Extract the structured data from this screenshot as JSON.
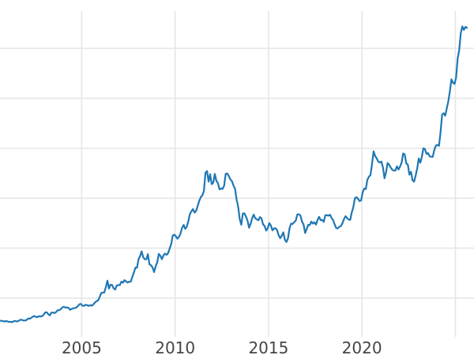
{
  "chart_data": {
    "type": "line",
    "title": "",
    "xlabel": "",
    "ylabel": "",
    "legend": "none",
    "grid": "on",
    "background_color": "#ffffff",
    "grid_color": "#e6e6e6",
    "line_color": "#1f77b4",
    "tick_label_color": "#454545",
    "tick_label_font_px": 20,
    "x_tick_labels": [
      "2005",
      "2010",
      "2015",
      "2020"
    ],
    "x_tick_years": [
      2005,
      2010,
      2015,
      2020
    ],
    "x_gridline_years": [
      2005,
      2010,
      2015,
      2020,
      2025
    ],
    "y_gridline_values": [
      500,
      1000,
      1500,
      2000,
      2500,
      3000
    ],
    "xlim": [
      2000.625,
      2026.0
    ],
    "ylim_visible": [
      -69,
      3484
    ],
    "series": [
      {
        "name": "price-series",
        "interval": "monthly",
        "start_year": 2000,
        "start_month": 8,
        "values": [
          274,
          273,
          270,
          266,
          271,
          266,
          262,
          263,
          260,
          272,
          270,
          267,
          272,
          284,
          283,
          276,
          276,
          281,
          295,
          294,
          302,
          314,
          321,
          313,
          310,
          319,
          317,
          319,
          333,
          357,
          359,
          340,
          328,
          355,
          356,
          351,
          360,
          379,
          379,
          389,
          407,
          414,
          405,
          407,
          403,
          384,
          392,
          398,
          401,
          405,
          420,
          439,
          442,
          424,
          423,
          434,
          429,
          422,
          431,
          424,
          438,
          456,
          470,
          477,
          510,
          550,
          555,
          557,
          611,
          675,
          596,
          634,
          632,
          598,
          586,
          627,
          630,
          631,
          665,
          655,
          680,
          667,
          656,
          665,
          665,
          713,
          755,
          806,
          804,
          890,
          922,
          968,
          910,
          889,
          889,
          940,
          839,
          829,
          807,
          761,
          820,
          858,
          943,
          924,
          890,
          929,
          946,
          934,
          950,
          997,
          1043,
          1127,
          1135,
          1118,
          1095,
          1113,
          1149,
          1205,
          1233,
          1193,
          1216,
          1271,
          1342,
          1370,
          1391,
          1356,
          1373,
          1424,
          1474,
          1511,
          1529,
          1573,
          1756,
          1772,
          1666,
          1739,
          1641,
          1655,
          1743,
          1674,
          1650,
          1589,
          1598,
          1593,
          1627,
          1744,
          1747,
          1722,
          1688,
          1671,
          1628,
          1593,
          1487,
          1414,
          1290,
          1235,
          1347,
          1348,
          1316,
          1276,
          1205,
          1244,
          1301,
          1336,
          1298,
          1289,
          1279,
          1311,
          1297,
          1238,
          1222,
          1176,
          1200,
          1251,
          1227,
          1179,
          1198,
          1199,
          1181,
          1130,
          1100,
          1125,
          1159,
          1086,
          1062,
          1097,
          1200,
          1246,
          1242,
          1260,
          1276,
          1337,
          1340,
          1327,
          1266,
          1238,
          1152,
          1192,
          1234,
          1231,
          1266,
          1246,
          1260,
          1236,
          1283,
          1314,
          1280,
          1282,
          1264,
          1331,
          1330,
          1325,
          1335,
          1303,
          1282,
          1238,
          1201,
          1198,
          1215,
          1221,
          1250,
          1292,
          1320,
          1301,
          1286,
          1284,
          1359,
          1413,
          1500,
          1511,
          1495,
          1471,
          1479,
          1561,
          1597,
          1592,
          1683,
          1716,
          1732,
          1843,
          1969,
          1922,
          1900,
          1866,
          1858,
          1867,
          1808,
          1700,
          1760,
          1853,
          1835,
          1807,
          1784,
          1777,
          1777,
          1820,
          1787,
          1817,
          1856,
          1948,
          1937,
          1848,
          1836,
          1736,
          1765,
          1681,
          1665,
          1726,
          1797,
          1898,
          1856,
          1913,
          2000,
          1992,
          1943,
          1951,
          1918,
          1916,
          1915,
          1984,
          2026,
          2034,
          2025,
          2158,
          2336,
          2351,
          2326,
          2398,
          2470,
          2570,
          2690,
          2657,
          2644,
          2708,
          2897,
          2983,
          3150,
          3220,
          3185,
          3215,
          3205
        ]
      }
    ]
  }
}
